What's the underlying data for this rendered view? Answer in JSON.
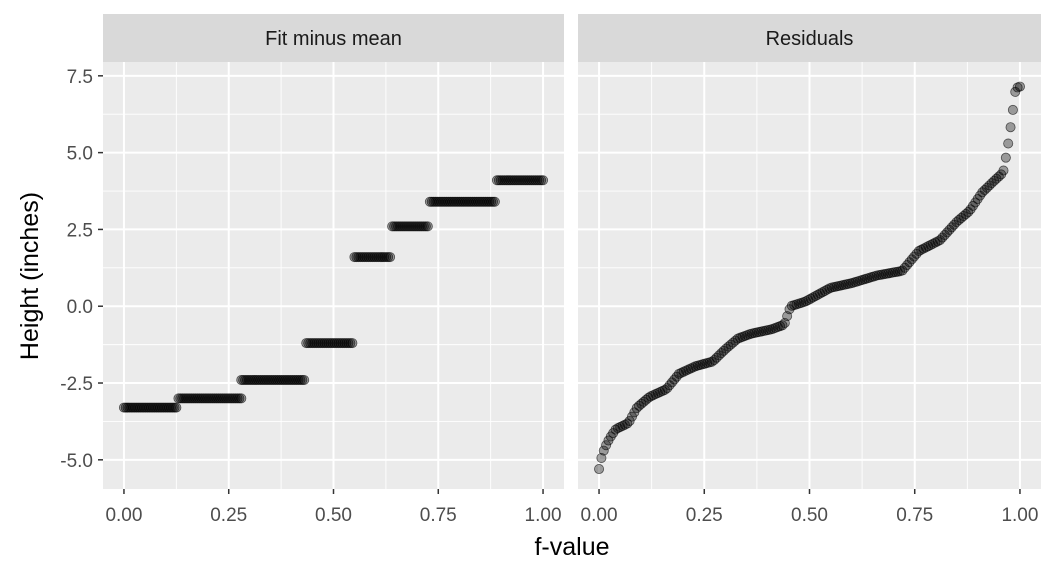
{
  "chart_data": {
    "type": "scatter",
    "ylabel": "Height (inches)",
    "xlabel": "f-value",
    "xlim": [
      -0.05,
      1.05
    ],
    "ylim": [
      -5.95,
      7.95
    ],
    "x_ticks": [
      0,
      0.25,
      0.5,
      0.75,
      1
    ],
    "x_tick_labels": [
      "0.00",
      "0.25",
      "0.50",
      "0.75",
      "1.00"
    ],
    "y_ticks": [
      -5,
      -2.5,
      0,
      2.5,
      5,
      7.5
    ],
    "y_tick_labels": [
      "-5.0",
      "-2.5",
      "0.0",
      "2.5",
      "5.0",
      "7.5"
    ],
    "grid": true,
    "point_color": "#000000",
    "point_alpha": 0.35,
    "panel_background": "#ebebeb",
    "strip_background": "#d9d9d9",
    "grid_color": "#ffffff",
    "panels": [
      {
        "title": "Fit minus mean",
        "groups": [
          {
            "y": -3.3,
            "x_start": 0.0,
            "x_end": 0.125,
            "n": 30
          },
          {
            "y": -3.0,
            "x_start": 0.13,
            "x_end": 0.28,
            "n": 34
          },
          {
            "y": -2.4,
            "x_start": 0.28,
            "x_end": 0.43,
            "n": 34
          },
          {
            "y": -1.2,
            "x_start": 0.435,
            "x_end": 0.545,
            "n": 24
          },
          {
            "y": 1.6,
            "x_start": 0.55,
            "x_end": 0.635,
            "n": 19
          },
          {
            "y": 2.6,
            "x_start": 0.64,
            "x_end": 0.725,
            "n": 19
          },
          {
            "y": 3.4,
            "x_start": 0.73,
            "x_end": 0.885,
            "n": 36
          },
          {
            "y": 4.1,
            "x_start": 0.89,
            "x_end": 1.0,
            "n": 25
          }
        ]
      },
      {
        "title": "Residuals",
        "curve": [
          [
            0.0,
            -5.3
          ],
          [
            0.007,
            -4.85
          ],
          [
            0.014,
            -4.6
          ],
          [
            0.025,
            -4.3
          ],
          [
            0.04,
            -4.0
          ],
          [
            0.07,
            -3.8
          ],
          [
            0.09,
            -3.3
          ],
          [
            0.12,
            -2.95
          ],
          [
            0.16,
            -2.7
          ],
          [
            0.19,
            -2.2
          ],
          [
            0.23,
            -1.95
          ],
          [
            0.27,
            -1.8
          ],
          [
            0.3,
            -1.4
          ],
          [
            0.33,
            -1.05
          ],
          [
            0.36,
            -0.9
          ],
          [
            0.41,
            -0.75
          ],
          [
            0.44,
            -0.6
          ],
          [
            0.455,
            0.0
          ],
          [
            0.49,
            0.15
          ],
          [
            0.55,
            0.6
          ],
          [
            0.6,
            0.75
          ],
          [
            0.66,
            1.0
          ],
          [
            0.72,
            1.15
          ],
          [
            0.76,
            1.8
          ],
          [
            0.81,
            2.15
          ],
          [
            0.85,
            2.75
          ],
          [
            0.88,
            3.1
          ],
          [
            0.91,
            3.7
          ],
          [
            0.94,
            4.1
          ],
          [
            0.96,
            4.35
          ],
          [
            0.97,
            5.1
          ],
          [
            0.98,
            6.05
          ],
          [
            0.99,
            7.1
          ],
          [
            1.0,
            7.15
          ]
        ],
        "n": 180
      }
    ]
  }
}
